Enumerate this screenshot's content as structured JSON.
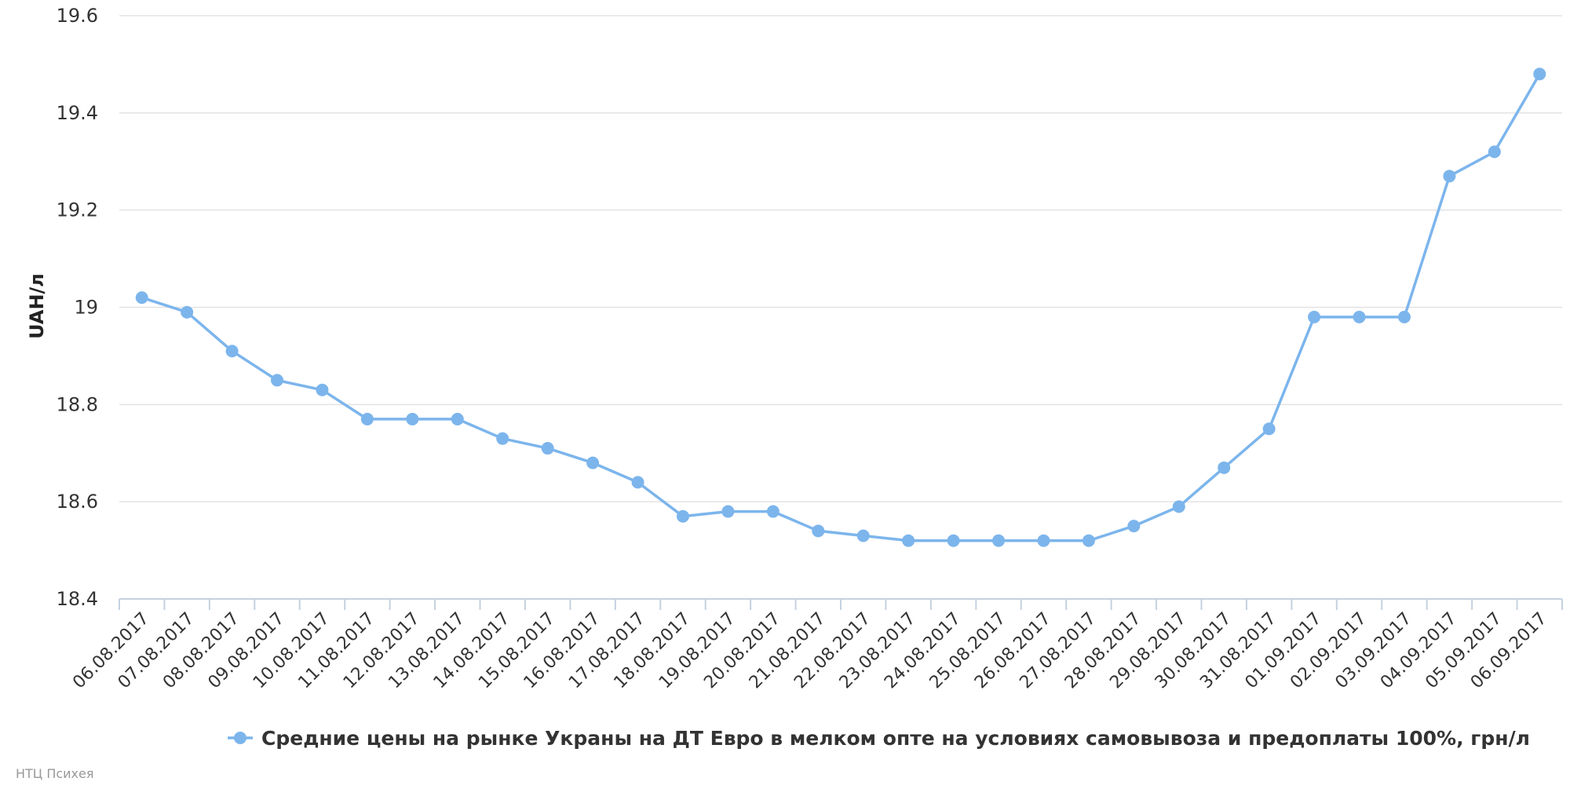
{
  "chart_data": {
    "type": "line",
    "title": "",
    "xlabel": "",
    "ylabel": "UAH/л",
    "ylim": [
      18.4,
      19.6
    ],
    "yticks": [
      "18.4",
      "18.6",
      "18.8",
      "19",
      "19.2",
      "19.4",
      "19.6"
    ],
    "grid": true,
    "legend_position": "bottom-center",
    "categories": [
      "06.08.2017",
      "07.08.2017",
      "08.08.2017",
      "09.08.2017",
      "10.08.2017",
      "11.08.2017",
      "12.08.2017",
      "13.08.2017",
      "14.08.2017",
      "15.08.2017",
      "16.08.2017",
      "17.08.2017",
      "18.08.2017",
      "19.08.2017",
      "20.08.2017",
      "21.08.2017",
      "22.08.2017",
      "23.08.2017",
      "24.08.2017",
      "25.08.2017",
      "26.08.2017",
      "27.08.2017",
      "28.08.2017",
      "29.08.2017",
      "30.08.2017",
      "31.08.2017",
      "01.09.2017",
      "02.09.2017",
      "03.09.2017",
      "04.09.2017",
      "05.09.2017",
      "06.09.2017"
    ],
    "series": [
      {
        "name": "Средние цены на рынке Украны на ДТ Евро в мелком опте на условиях самовывоза и предоплаты 100%, грн/л",
        "color": "#7cb5ec",
        "values": [
          19.02,
          18.99,
          18.91,
          18.85,
          18.83,
          18.77,
          18.77,
          18.77,
          18.73,
          18.71,
          18.68,
          18.64,
          18.57,
          18.58,
          18.58,
          18.54,
          18.53,
          18.52,
          18.52,
          18.52,
          18.52,
          18.52,
          18.55,
          18.59,
          18.67,
          18.75,
          18.98,
          18.98,
          18.98,
          19.27,
          19.32,
          19.48
        ]
      }
    ]
  },
  "credits": "НТЦ Психея"
}
